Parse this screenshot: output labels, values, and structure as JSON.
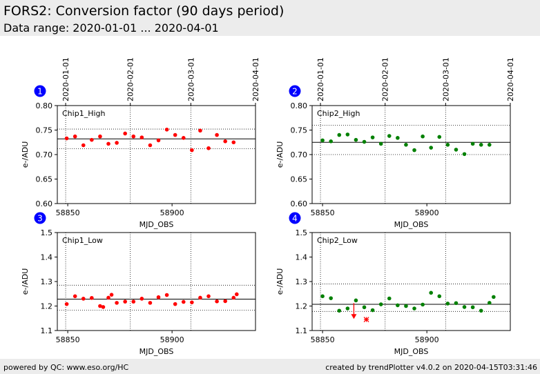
{
  "header": {
    "title": "FORS2: Conversion factor (90 days period)",
    "subtitle": "Data range: 2020-01-01 ... 2020-04-01"
  },
  "footer": {
    "left": "powered by QC: www.eso.org/HC",
    "right": "created by trendPlotter v4.0.2 on 2020-04-15T03:31:46"
  },
  "colors": {
    "red_series": "#ff0000",
    "green_series": "#008000",
    "badge": "#0000ff",
    "header_bg": "#ececec"
  },
  "chart_data": [
    {
      "type": "scatter",
      "badge": "1",
      "label": "Chip1_High",
      "color": "red",
      "xlabel": "MJD_OBS",
      "ylabel": "e-/ADU",
      "xlim": [
        58845,
        58940
      ],
      "ylim": [
        0.6,
        0.8
      ],
      "yticks": [
        "0.60",
        "0.65",
        "0.70",
        "0.75",
        "0.80"
      ],
      "xticks": [
        "58850",
        "58900"
      ],
      "date_ticks": [
        "2020-01-01",
        "2020-02-01",
        "2020-03-01",
        "2020-04-01"
      ],
      "mean_line": 0.732,
      "band_lines": [
        0.712,
        0.752
      ],
      "x": [
        58849.5,
        58853.5,
        58857.5,
        58861.5,
        58865.5,
        58869.5,
        58873.5,
        58877.5,
        58881.5,
        58885.5,
        58889.5,
        58893.5,
        58897.5,
        58901.5,
        58905.5,
        58909.5,
        58913.5,
        58917.5,
        58921.5,
        58925.5,
        58929.5
      ],
      "y": [
        0.733,
        0.737,
        0.719,
        0.73,
        0.737,
        0.722,
        0.724,
        0.743,
        0.737,
        0.735,
        0.719,
        0.729,
        0.751,
        0.74,
        0.734,
        0.709,
        0.749,
        0.713,
        0.74,
        0.727,
        0.725
      ],
      "outliers": []
    },
    {
      "type": "scatter",
      "badge": "2",
      "label": "Chip2_High",
      "color": "green",
      "xlabel": "MJD_OBS",
      "ylabel": "e-/ADU",
      "xlim": [
        58845,
        58940
      ],
      "ylim": [
        0.6,
        0.8
      ],
      "yticks": [
        "0.60",
        "0.65",
        "0.70",
        "0.75",
        "0.80"
      ],
      "xticks": [
        "58850",
        "58900"
      ],
      "date_ticks": [
        "2020-01-01",
        "2020-02-01",
        "2020-03-01",
        "2020-04-01"
      ],
      "mean_line": 0.725,
      "band_lines": [
        0.7,
        0.76
      ],
      "x": [
        58850,
        58854,
        58858,
        58862,
        58866,
        58870,
        58874,
        58878,
        58882,
        58886,
        58890,
        58894,
        58898,
        58902,
        58906,
        58910,
        58914,
        58918,
        58922,
        58926,
        58930
      ],
      "y": [
        0.729,
        0.727,
        0.74,
        0.741,
        0.73,
        0.726,
        0.735,
        0.722,
        0.738,
        0.734,
        0.72,
        0.709,
        0.737,
        0.714,
        0.736,
        0.72,
        0.71,
        0.701,
        0.722,
        0.72,
        0.72
      ],
      "outliers": []
    },
    {
      "type": "scatter",
      "badge": "3",
      "label": "Chip1_Low",
      "color": "red",
      "xlabel": "MJD_OBS",
      "ylabel": "e-/ADU",
      "xlim": [
        58845,
        58940
      ],
      "ylim": [
        1.1,
        1.5
      ],
      "yticks": [
        "1.1",
        "1.2",
        "1.3",
        "1.4",
        "1.5"
      ],
      "xticks": [
        "58850",
        "58900"
      ],
      "date_ticks": [],
      "mean_line": 1.228,
      "band_lines": [
        1.183,
        1.285
      ],
      "x": [
        58849.5,
        58853.5,
        58857.5,
        58861.5,
        58865.5,
        58867,
        58869.5,
        58871,
        58873.5,
        58877.5,
        58881.5,
        58885.5,
        58889.5,
        58893.5,
        58897.5,
        58901.5,
        58905.5,
        58909.5,
        58913.5,
        58917.5,
        58921.5,
        58925.5,
        58929.5,
        58931
      ],
      "y": [
        1.208,
        1.24,
        1.23,
        1.233,
        1.2,
        1.196,
        1.234,
        1.246,
        1.213,
        1.218,
        1.218,
        1.23,
        1.213,
        1.236,
        1.245,
        1.208,
        1.217,
        1.215,
        1.234,
        1.24,
        1.219,
        1.22,
        1.234,
        1.248
      ],
      "outliers": []
    },
    {
      "type": "scatter",
      "badge": "4",
      "label": "Chip2_Low",
      "color": "green",
      "xlabel": "MJD_OBS",
      "ylabel": "e-/ADU",
      "xlim": [
        58845,
        58940
      ],
      "ylim": [
        1.1,
        1.5
      ],
      "yticks": [
        "1.1",
        "1.2",
        "1.3",
        "1.4",
        "1.5"
      ],
      "xticks": [
        "58850",
        "58900"
      ],
      "date_ticks": [],
      "mean_line": 1.207,
      "band_lines": [
        1.178,
        1.29
      ],
      "x": [
        58850,
        58854,
        58858,
        58862,
        58866,
        58870,
        58874,
        58878,
        58882,
        58886,
        58890,
        58894,
        58898,
        58902,
        58906,
        58910,
        58914,
        58918,
        58922,
        58926,
        58930,
        58932
      ],
      "y": [
        1.24,
        1.232,
        1.181,
        1.19,
        1.223,
        1.195,
        1.183,
        1.207,
        1.231,
        1.203,
        1.2,
        1.19,
        1.206,
        1.254,
        1.24,
        1.21,
        1.212,
        1.196,
        1.195,
        1.181,
        1.213,
        1.237
      ],
      "outliers": [
        {
          "marker": "arrow-down",
          "color": "red",
          "x": 58865,
          "y": 1.15
        },
        {
          "marker": "star",
          "color": "red",
          "x": 58871,
          "y": 1.145
        }
      ]
    }
  ]
}
